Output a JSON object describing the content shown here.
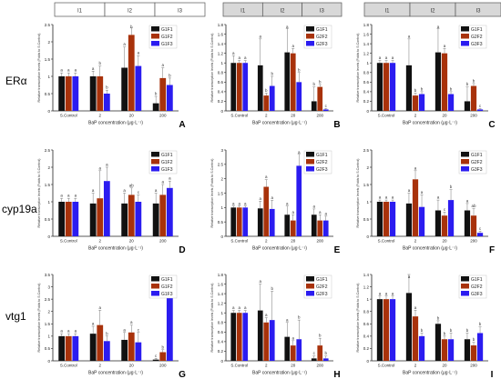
{
  "rows": [
    "ERα",
    "cyp19a",
    "vtg1"
  ],
  "colors": {
    "F1": "#111111",
    "F2": "#a8320b",
    "F3": "#2b1cf0",
    "highlight": "#f7b3dd"
  },
  "gen_header": [
    "I1",
    "I2",
    "I3"
  ],
  "chart_data": [
    {
      "type": "bar",
      "letter": "A",
      "categories": [
        "S.Control",
        "2",
        "20",
        "200"
      ],
      "xlabel": "BaP concentration (μg·L⁻¹)",
      "ylabel": "Relative transcription levels (Folds to S.Control)",
      "ylim": [
        0,
        2.5
      ],
      "yticks": [
        0,
        0.5,
        1,
        1.5,
        2,
        2.5
      ],
      "legend_position": "top-right",
      "series": [
        {
          "name": "G1F1",
          "values": [
            1.0,
            1.0,
            1.25,
            0.22
          ]
        },
        {
          "name": "G1F2",
          "values": [
            1.0,
            1.0,
            2.2,
            0.95
          ]
        },
        {
          "name": "G1F3",
          "values": [
            1.0,
            0.5,
            1.3,
            0.75
          ]
        }
      ],
      "errors": [
        [
          0.1,
          0.15,
          0.6,
          0.2
        ],
        [
          0.1,
          0.3,
          0.2,
          0.3
        ],
        [
          0.1,
          0.1,
          0.3,
          0.2
        ]
      ],
      "letters": [
        [
          "a",
          "a",
          "a",
          "b"
        ],
        [
          "a",
          "b",
          "b",
          "a"
        ],
        [
          "a",
          "b",
          "a",
          "b"
        ]
      ]
    },
    {
      "type": "bar",
      "letter": "B",
      "categories": [
        "S.Control",
        "2",
        "20",
        "200"
      ],
      "xlabel": "BaP concentration (μg·L⁻¹)",
      "ylabel": "Relative transcription levels (Folds to S.Control)",
      "ylim": [
        0,
        1.8
      ],
      "yticks": [
        0,
        0.2,
        0.4,
        0.6,
        0.8,
        1,
        1.2,
        1.4,
        1.6,
        1.8
      ],
      "legend_position": "top-right",
      "series": [
        {
          "name": "G1F1",
          "values": [
            1.0,
            0.95,
            1.22,
            0.2
          ]
        },
        {
          "name": "G2F2",
          "values": [
            1.0,
            0.32,
            1.2,
            0.5
          ]
        },
        {
          "name": "G2F3",
          "values": [
            1.0,
            0.52,
            0.6,
            0.03
          ]
        }
      ],
      "errors": [
        [
          0.15,
          0.55,
          0.5,
          0.3
        ],
        [
          0.05,
          0.05,
          0.1,
          0.05
        ],
        [
          0.05,
          0.2,
          0.2,
          0.02
        ]
      ],
      "letters": [
        [
          "a",
          "a",
          "a",
          "b"
        ],
        [
          "a",
          "b",
          "a",
          "b"
        ],
        [
          "a",
          "b",
          "b",
          "c"
        ]
      ]
    },
    {
      "type": "bar",
      "letter": "C",
      "categories": [
        "S.Control",
        "2",
        "20",
        "200"
      ],
      "xlabel": "BaP concentration (μg·L⁻¹)",
      "ylabel": "Relative transcription levels (Folds to S.Control)",
      "ylim": [
        0,
        1.8
      ],
      "yticks": [
        0,
        0.2,
        0.4,
        0.6,
        0.8,
        1,
        1.2,
        1.4,
        1.6,
        1.8
      ],
      "legend_position": "top-right",
      "series": [
        {
          "name": "G1F1",
          "values": [
            1.0,
            0.95,
            1.22,
            0.2
          ]
        },
        {
          "name": "G2F2",
          "values": [
            1.0,
            0.32,
            1.2,
            0.52
          ]
        },
        {
          "name": "G3F3",
          "values": [
            1.0,
            0.35,
            0.35,
            0.03
          ]
        }
      ],
      "errors": [
        [
          0.05,
          0.55,
          0.5,
          0.3
        ],
        [
          0.05,
          0.05,
          0.1,
          0.05
        ],
        [
          0.05,
          0.05,
          0.05,
          0.02
        ]
      ],
      "letters": [
        [
          "a",
          "a",
          "a",
          "b"
        ],
        [
          "a",
          "b",
          "a",
          "b"
        ],
        [
          "a",
          "b",
          "b",
          "c"
        ]
      ]
    },
    {
      "type": "bar",
      "letter": "D",
      "categories": [
        "S.Control",
        "2",
        "20",
        "200"
      ],
      "xlabel": "BaP concentration (μg·L⁻¹)",
      "ylabel": "Relative transcription levels (Folds to S.Control)",
      "ylim": [
        0,
        2.5
      ],
      "yticks": [
        0,
        0.5,
        1,
        1.5,
        2,
        2.5
      ],
      "legend_position": "top-right",
      "series": [
        {
          "name": "G1F1",
          "values": [
            1.0,
            0.95,
            0.95,
            0.95
          ]
        },
        {
          "name": "G1F2",
          "values": [
            1.0,
            1.1,
            1.2,
            1.2
          ]
        },
        {
          "name": "G1F3",
          "values": [
            1.0,
            1.6,
            1.0,
            1.4
          ]
        }
      ],
      "errors": [
        [
          0.1,
          0.3,
          0.3,
          0.3
        ],
        [
          0.1,
          0.8,
          0.2,
          0.3
        ],
        [
          0.1,
          0.4,
          0.2,
          0.2
        ]
      ],
      "letters": [
        [
          "a",
          "a",
          "a",
          "a"
        ],
        [
          "a",
          "a",
          "ab",
          "a"
        ],
        [
          "a",
          "a",
          "c",
          "a"
        ]
      ]
    },
    {
      "type": "bar",
      "letter": "E",
      "categories": [
        "S.Control",
        "2",
        "20",
        "200"
      ],
      "xlabel": "BaP concentration (μg·L⁻¹)",
      "ylabel": "Relative transcription levels (Folds to S.Control)",
      "ylim": [
        0,
        3
      ],
      "yticks": [
        0,
        0.5,
        1,
        1.5,
        2,
        2.5,
        3
      ],
      "legend_position": "top-right",
      "series": [
        {
          "name": "G1F1",
          "values": [
            1.0,
            0.97,
            0.75,
            0.75
          ]
        },
        {
          "name": "G2F2",
          "values": [
            1.0,
            1.72,
            0.55,
            0.55
          ]
        },
        {
          "name": "G2F3",
          "values": [
            1.0,
            0.95,
            2.45,
            0.55
          ]
        }
      ],
      "errors": [
        [
          0.05,
          0.25,
          0.3,
          0.2
        ],
        [
          0.05,
          0.25,
          0.2,
          0.2
        ],
        [
          0.05,
          0.3,
          0.4,
          0.15
        ]
      ],
      "letters": [
        [
          "a",
          "a",
          "a",
          "a"
        ],
        [
          "a",
          "a",
          "a",
          "a"
        ],
        [
          "a",
          "a",
          "a",
          "a"
        ]
      ]
    },
    {
      "type": "bar",
      "letter": "F",
      "categories": [
        "S.Control",
        "2",
        "20",
        "200"
      ],
      "xlabel": "BaP concentration (μg·L⁻¹)",
      "ylabel": "Relative transcription levels (Folds to S.Control)",
      "ylim": [
        0,
        2.5
      ],
      "yticks": [
        0,
        0.5,
        1,
        1.5,
        2,
        2.5
      ],
      "legend_position": "top-right",
      "series": [
        {
          "name": "G1F1",
          "values": [
            1.0,
            0.95,
            0.75,
            0.75
          ]
        },
        {
          "name": "G2F2",
          "values": [
            1.0,
            1.65,
            0.6,
            0.6
          ]
        },
        {
          "name": "G3F3",
          "values": [
            1.0,
            0.85,
            1.05,
            0.1
          ]
        }
      ],
      "errors": [
        [
          0.05,
          0.3,
          0.3,
          0.2
        ],
        [
          0.05,
          0.25,
          0.1,
          0.2
        ],
        [
          0.05,
          0.35,
          0.3,
          0.05
        ]
      ],
      "letters": [
        [
          "a",
          "a",
          "a",
          "a"
        ],
        [
          "a",
          "a",
          "c",
          "ab"
        ],
        [
          "a",
          "a",
          "b",
          "c"
        ]
      ]
    },
    {
      "type": "bar",
      "letter": "G",
      "categories": [
        "S.Control",
        "2",
        "20",
        "200"
      ],
      "xlabel": "BaP concentration (μg·L⁻¹)",
      "ylabel": "Relative transcription levels (Folds to S.Control)",
      "ylim": [
        0,
        3.5
      ],
      "yticks": [
        0,
        0.5,
        1,
        1.5,
        2,
        2.5,
        3,
        3.5
      ],
      "legend_position": "top-right",
      "series": [
        {
          "name": "G1F1",
          "values": [
            1.0,
            1.1,
            0.85,
            0.05
          ]
        },
        {
          "name": "G1F2",
          "values": [
            1.0,
            1.45,
            1.15,
            0.35
          ]
        },
        {
          "name": "G1F3",
          "values": [
            1.0,
            0.8,
            0.75,
            2.6
          ]
        }
      ],
      "errors": [
        [
          0.1,
          0.3,
          0.3,
          0.05
        ],
        [
          0.1,
          0.6,
          0.3,
          0.1
        ],
        [
          0.1,
          0.2,
          0.4,
          0.4
        ]
      ],
      "letters": [
        [
          "a",
          "a",
          "a",
          "c"
        ],
        [
          "a",
          "a",
          "a",
          "b"
        ],
        [
          "a",
          "b",
          "c",
          "a"
        ]
      ]
    },
    {
      "type": "bar",
      "letter": "H",
      "categories": [
        "S.Control",
        "2",
        "20",
        "200"
      ],
      "xlabel": "BaP concentration (μg·L⁻¹)",
      "ylabel": "Relative transcription levels (Folds to S.Control)",
      "ylim": [
        0,
        1.8
      ],
      "yticks": [
        0,
        0.2,
        0.4,
        0.6,
        0.8,
        1,
        1.2,
        1.4,
        1.6,
        1.8
      ],
      "legend_position": "top-right",
      "series": [
        {
          "name": "G1F1",
          "values": [
            1.0,
            1.05,
            0.5,
            0.05
          ]
        },
        {
          "name": "G2F2",
          "values": [
            1.0,
            0.8,
            0.32,
            0.32
          ]
        },
        {
          "name": "G2F3",
          "values": [
            1.0,
            0.85,
            0.45,
            0.05
          ]
        }
      ],
      "errors": [
        [
          0.05,
          0.55,
          0.3,
          0.05
        ],
        [
          0.05,
          0.1,
          0.1,
          0.15
        ],
        [
          0.05,
          0.6,
          0.4,
          0.05
        ]
      ],
      "letters": [
        [
          "a",
          "a",
          "a",
          "c"
        ],
        [
          "a",
          "a",
          "a",
          "b"
        ],
        [
          "a",
          "b",
          "b",
          "b"
        ]
      ]
    },
    {
      "type": "bar",
      "letter": "I",
      "categories": [
        "S.Control",
        "2",
        "20",
        "200"
      ],
      "xlabel": "BaP concentration (μg·L⁻¹)",
      "ylabel": "Relative transcription levels (Folds to S.Control)",
      "ylim": [
        0,
        1.4
      ],
      "yticks": [
        0,
        0.2,
        0.4,
        0.6,
        0.8,
        1,
        1.2,
        1.4
      ],
      "legend_position": "top-right",
      "series": [
        {
          "name": "G1F1",
          "values": [
            1.0,
            1.1,
            0.6,
            0.35
          ]
        },
        {
          "name": "G2F2",
          "values": [
            1.0,
            0.72,
            0.35,
            0.25
          ]
        },
        {
          "name": "G3F3",
          "values": [
            1.0,
            0.4,
            0.35,
            0.45
          ]
        }
      ],
      "errors": [
        [
          0.05,
          0.3,
          0.05,
          0.1
        ],
        [
          0.05,
          0.1,
          0.05,
          0.05
        ],
        [
          0.05,
          0.05,
          0.1,
          0.1
        ]
      ],
      "letters": [
        [
          "a",
          "a",
          "b",
          "b"
        ],
        [
          "a",
          "a",
          "b",
          "b"
        ],
        [
          "a",
          "b",
          "b",
          "b"
        ]
      ]
    }
  ]
}
